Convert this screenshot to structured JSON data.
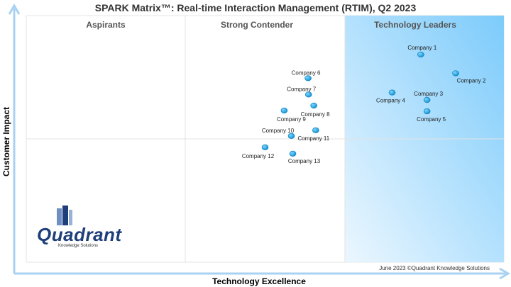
{
  "chart_data": {
    "type": "scatter",
    "title": "SPARK Matrix™: Real-time Interaction Management (RTIM), Q2 2023",
    "xlabel": "Technology Excellence",
    "ylabel": "Customer Impact",
    "xlim": [
      0,
      100
    ],
    "ylim": [
      0,
      100
    ],
    "grid": true,
    "zones": [
      "Aspirants",
      "Strong Contender",
      "Technology Leaders"
    ],
    "points": [
      {
        "label": "Company 1",
        "x": 82.6,
        "y": 84.2
      },
      {
        "label": "Company 2",
        "x": 89.9,
        "y": 76.6
      },
      {
        "label": "Company 3",
        "x": 83.9,
        "y": 65.8
      },
      {
        "label": "Company 4",
        "x": 76.6,
        "y": 68.8
      },
      {
        "label": "Company 5",
        "x": 83.9,
        "y": 61.2
      },
      {
        "label": "Company 6",
        "x": 59.0,
        "y": 74.6
      },
      {
        "label": "Company 7",
        "x": 59.1,
        "y": 68.0
      },
      {
        "label": "Company 8",
        "x": 60.2,
        "y": 63.5
      },
      {
        "label": "Company 9",
        "x": 54.0,
        "y": 61.5
      },
      {
        "label": "Company 10",
        "x": 55.5,
        "y": 51.2
      },
      {
        "label": "Company 11",
        "x": 60.6,
        "y": 53.5
      },
      {
        "label": "Company 12",
        "x": 50.0,
        "y": 46.6
      },
      {
        "label": "Company 13",
        "x": 55.8,
        "y": 44.0
      }
    ]
  },
  "footer": "June 2023 ©Quadrant Knowledge Solutions",
  "logo": {
    "name": "Quadrant",
    "tagline": "Knowledge Solutions"
  },
  "colors": {
    "point": "#1aa6e0",
    "axis": "#a9d2f2",
    "leaders_zone": "#8fd0fb"
  }
}
